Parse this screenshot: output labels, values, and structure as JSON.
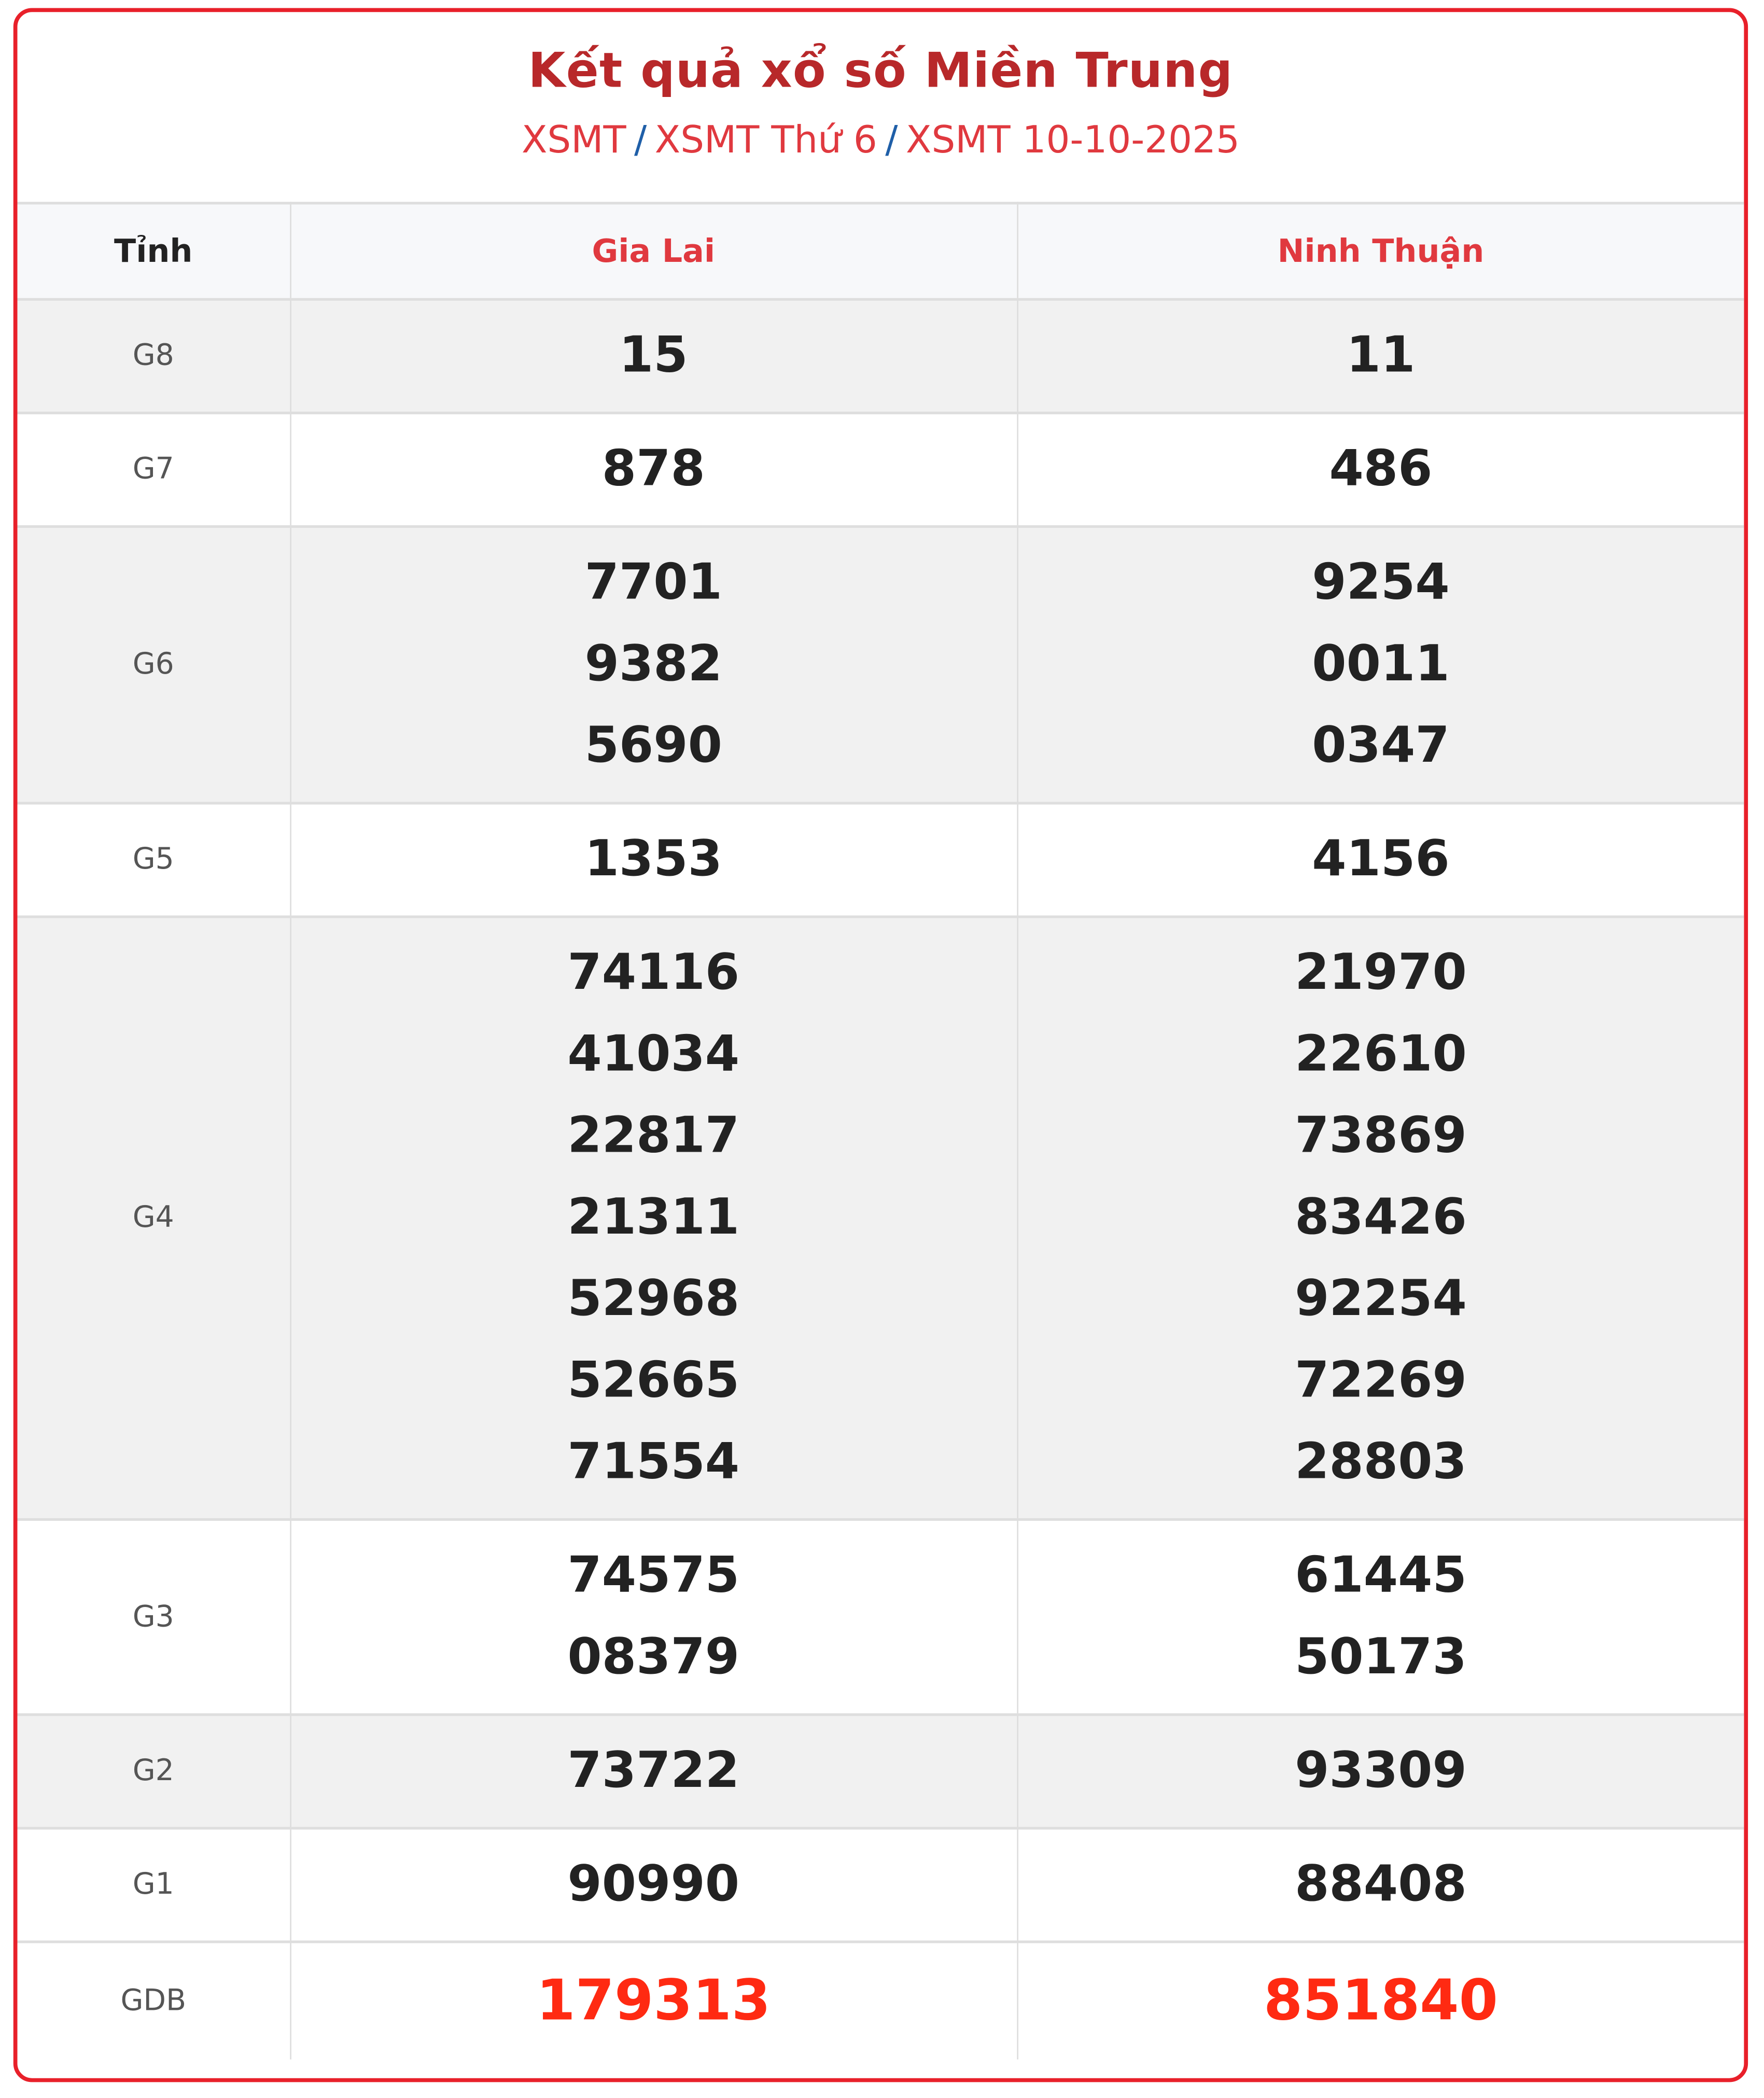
{
  "header": {
    "title": "Kết quả xổ số Miền Trung",
    "breadcrumb": [
      "XSMT",
      "XSMT Thứ 6",
      "XSMT 10-10-2025"
    ],
    "separator": "/"
  },
  "table": {
    "columns": [
      "Tỉnh",
      "Gia Lai",
      "Ninh Thuận"
    ],
    "rows": [
      {
        "prize": "G8",
        "values": [
          [
            "15"
          ],
          [
            "11"
          ]
        ]
      },
      {
        "prize": "G7",
        "values": [
          [
            "878"
          ],
          [
            "486"
          ]
        ]
      },
      {
        "prize": "G6",
        "values": [
          [
            "7701",
            "9382",
            "5690"
          ],
          [
            "9254",
            "0011",
            "0347"
          ]
        ]
      },
      {
        "prize": "G5",
        "values": [
          [
            "1353"
          ],
          [
            "4156"
          ]
        ]
      },
      {
        "prize": "G4",
        "values": [
          [
            "74116",
            "41034",
            "22817",
            "21311",
            "52968",
            "52665",
            "71554"
          ],
          [
            "21970",
            "22610",
            "73869",
            "83426",
            "92254",
            "72269",
            "28803"
          ]
        ]
      },
      {
        "prize": "G3",
        "values": [
          [
            "74575",
            "08379"
          ],
          [
            "61445",
            "50173"
          ]
        ]
      },
      {
        "prize": "G2",
        "values": [
          [
            "73722"
          ],
          [
            "93309"
          ]
        ]
      },
      {
        "prize": "G1",
        "values": [
          [
            "90990"
          ],
          [
            "88408"
          ]
        ]
      },
      {
        "prize": "GDB",
        "values": [
          [
            "179313"
          ],
          [
            "851840"
          ]
        ]
      }
    ]
  },
  "colors": {
    "border": "#e8202a",
    "title": "#b8282a",
    "link": "#e0393f",
    "special": "#ff2a12"
  }
}
